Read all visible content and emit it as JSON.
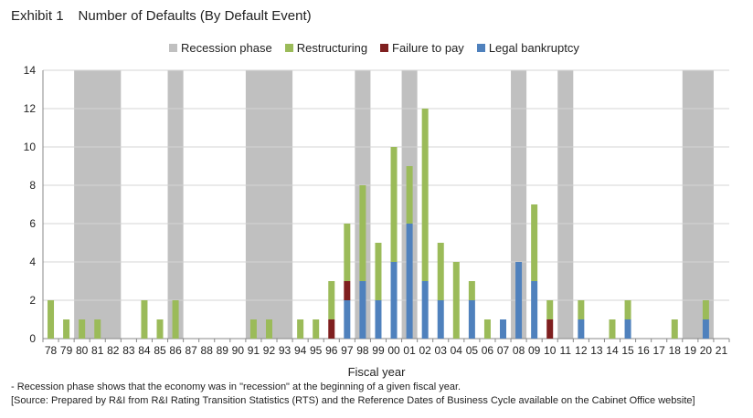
{
  "header": {
    "exhibit": "Exhibit 1",
    "title": "Number of Defaults (By Default Event)"
  },
  "legend": [
    {
      "label": "Recession phase",
      "color": "#c0c0c0"
    },
    {
      "label": "Restructuring",
      "color": "#9bbb59"
    },
    {
      "label": "Failure to pay",
      "color": "#7f1f1f"
    },
    {
      "label": "Legal bankruptcy",
      "color": "#4f81bd"
    }
  ],
  "footer": {
    "note": "- Recession phase shows that the economy was in \"recession\" at the beginning of a given fiscal year.",
    "source": "[Source: Prepared by R&I from R&I Rating Transition Statistics (RTS) and the Reference Dates of Business Cycle available on the Cabinet Office website]"
  },
  "chart_data": {
    "type": "bar",
    "stacked": true,
    "xlabel": "Fiscal year",
    "ylabel": "",
    "ylim": [
      0,
      14
    ],
    "yticks": [
      0,
      2,
      4,
      6,
      8,
      10,
      12,
      14
    ],
    "grid": true,
    "legend_position": "top",
    "categories": [
      "78",
      "79",
      "80",
      "81",
      "82",
      "83",
      "84",
      "85",
      "86",
      "87",
      "88",
      "89",
      "90",
      "91",
      "92",
      "93",
      "94",
      "95",
      "96",
      "97",
      "98",
      "99",
      "00",
      "01",
      "02",
      "03",
      "04",
      "05",
      "06",
      "07",
      "08",
      "09",
      "10",
      "11",
      "12",
      "13",
      "14",
      "15",
      "16",
      "17",
      "18",
      "19",
      "20",
      "21"
    ],
    "recession": [
      0,
      0,
      1,
      1,
      1,
      0,
      0,
      0,
      1,
      0,
      0,
      0,
      0,
      1,
      1,
      1,
      0,
      0,
      0,
      0,
      1,
      0,
      0,
      1,
      0,
      0,
      0,
      0,
      0,
      0,
      1,
      0,
      0,
      1,
      0,
      0,
      0,
      0,
      0,
      0,
      0,
      1,
      1,
      0
    ],
    "series": [
      {
        "name": "Legal bankruptcy",
        "color": "#4f81bd",
        "values": [
          0,
          0,
          0,
          0,
          0,
          0,
          0,
          0,
          0,
          0,
          0,
          0,
          0,
          0,
          0,
          0,
          0,
          0,
          0,
          2,
          3,
          2,
          4,
          6,
          3,
          2,
          0,
          2,
          0,
          1,
          4,
          3,
          0,
          0,
          1,
          0,
          0,
          1,
          0,
          0,
          0,
          0,
          1,
          0
        ]
      },
      {
        "name": "Failure to pay",
        "color": "#7f1f1f",
        "values": [
          0,
          0,
          0,
          0,
          0,
          0,
          0,
          0,
          0,
          0,
          0,
          0,
          0,
          0,
          0,
          0,
          0,
          0,
          1,
          1,
          0,
          0,
          0,
          0,
          0,
          0,
          0,
          0,
          0,
          0,
          0,
          0,
          1,
          0,
          0,
          0,
          0,
          0,
          0,
          0,
          0,
          0,
          0,
          0
        ]
      },
      {
        "name": "Restructuring",
        "color": "#9bbb59",
        "values": [
          2,
          1,
          1,
          1,
          0,
          0,
          2,
          1,
          2,
          0,
          0,
          0,
          0,
          1,
          1,
          0,
          1,
          1,
          2,
          3,
          5,
          3,
          6,
          3,
          9,
          3,
          4,
          1,
          1,
          0,
          0,
          4,
          1,
          0,
          1,
          0,
          1,
          1,
          0,
          0,
          1,
          0,
          1,
          0
        ]
      }
    ]
  }
}
